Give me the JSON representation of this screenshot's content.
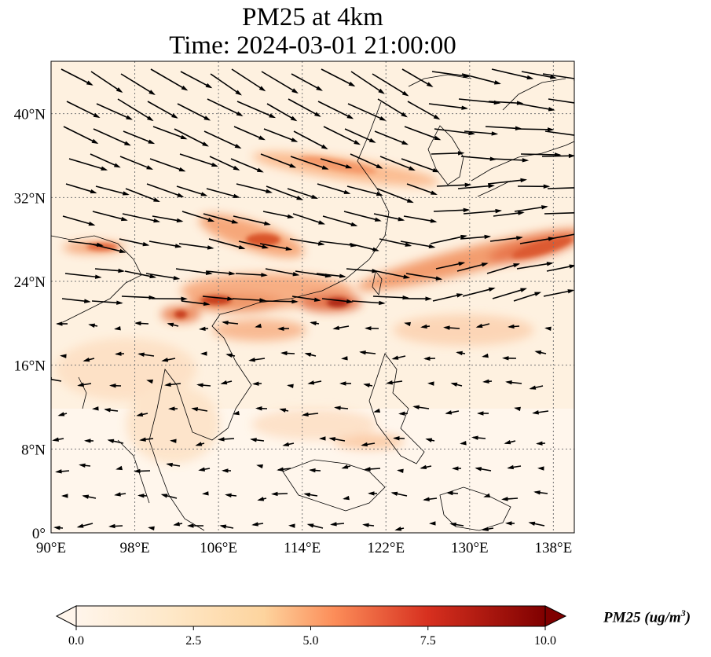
{
  "title": {
    "line1": "PM25 at 4km",
    "line2": "Time: 2024-03-01 21:00:00"
  },
  "map": {
    "lon_range": [
      90,
      140
    ],
    "lat_range": [
      0,
      45
    ],
    "lon_ticks": [
      {
        "value": 90,
        "label": "90°E"
      },
      {
        "value": 98,
        "label": "98°E"
      },
      {
        "value": 106,
        "label": "106°E"
      },
      {
        "value": 114,
        "label": "114°E"
      },
      {
        "value": 122,
        "label": "122°E"
      },
      {
        "value": 130,
        "label": "130°E"
      },
      {
        "value": 138,
        "label": "138°E"
      }
    ],
    "lat_ticks": [
      {
        "value": 0,
        "label": "0°"
      },
      {
        "value": 8,
        "label": "8°N"
      },
      {
        "value": 16,
        "label": "16°N"
      },
      {
        "value": 24,
        "label": "24°N"
      },
      {
        "value": 32,
        "label": "32°N"
      },
      {
        "value": 40,
        "label": "40°N"
      }
    ],
    "gridlines": true,
    "wind_vectors": true,
    "background_color": "#fef1e0",
    "plume_color_scale": [
      "#fff5eb",
      "#fdd9b0",
      "#fca66a",
      "#e9592b",
      "#b82a0f",
      "#7f0000"
    ]
  },
  "colorbar": {
    "min": 0.0,
    "max": 10.0,
    "ticks": [
      "0.0",
      "2.5",
      "5.0",
      "7.5",
      "10.0"
    ],
    "label_main": "PM25 (ug/m",
    "label_sup": "3",
    "label_end": ")",
    "colormap": "OrRd",
    "extend": "both"
  }
}
